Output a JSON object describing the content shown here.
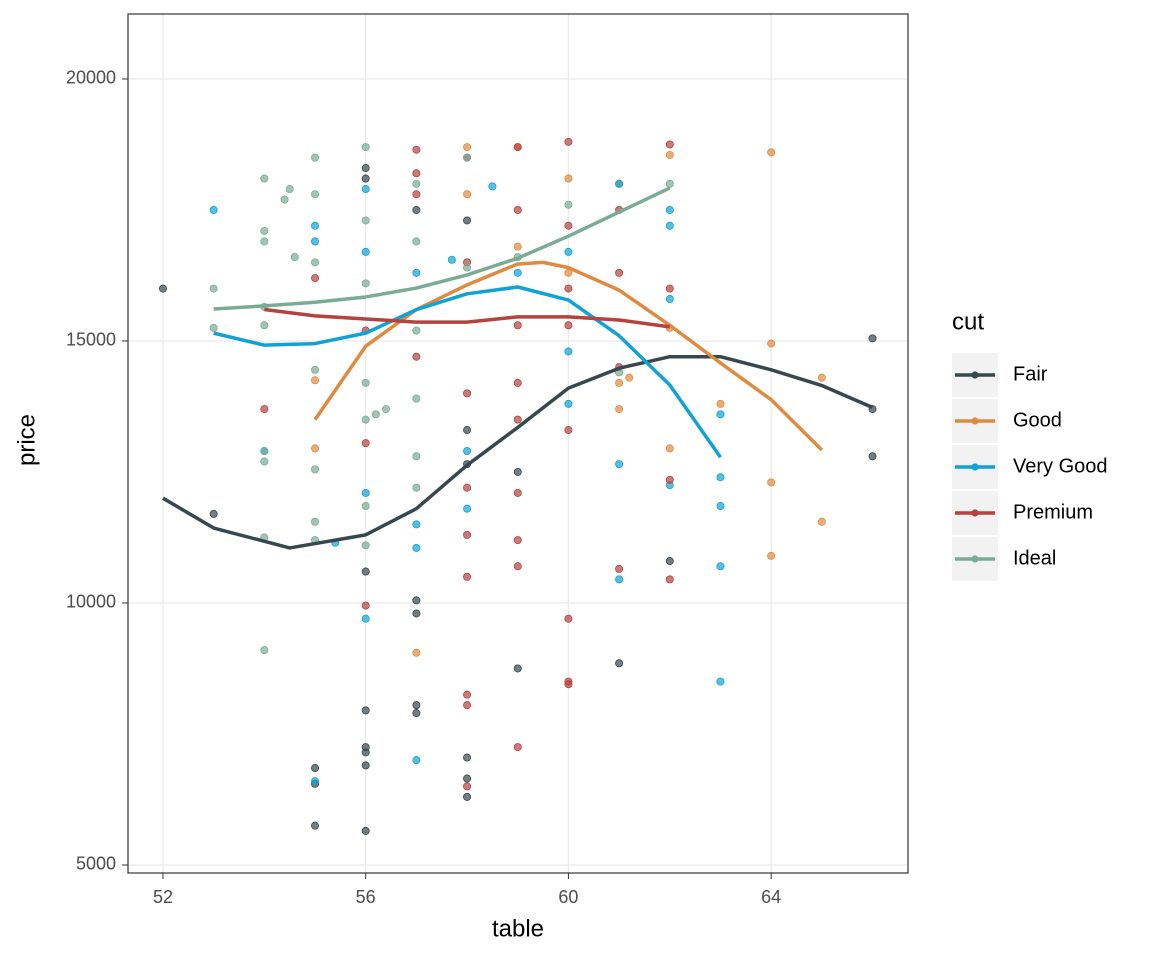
{
  "chart_data": {
    "type": "scatter",
    "x_label": "table",
    "y_label": "price",
    "legend_title": "cut",
    "legend": "right",
    "grid": true,
    "xlim": [
      51.31,
      66.7
    ],
    "ylim": [
      4847,
      21240
    ],
    "xticks": [
      52,
      56,
      60,
      64
    ],
    "yticks": [
      5000,
      10000,
      15000,
      20000
    ],
    "series": [
      {
        "name": "Fair",
        "color": "#37474f",
        "x": [
          52,
          53,
          55,
          55,
          55,
          56,
          56,
          56,
          56,
          56,
          56,
          56,
          56,
          57,
          57,
          57,
          57,
          58,
          58,
          58,
          58,
          58,
          59,
          59,
          61,
          62,
          66,
          66,
          66,
          57,
          58
        ],
        "values": [
          16000,
          11700,
          6850,
          6550,
          5750,
          18300,
          18100,
          10600,
          7950,
          7250,
          7150,
          6900,
          5650,
          10050,
          9800,
          8050,
          7900,
          13300,
          12650,
          7050,
          6650,
          6300,
          12500,
          8750,
          8850,
          10800,
          15050,
          13700,
          12800,
          17500,
          17300
        ],
        "fit_x": [
          52,
          53,
          54.5,
          56,
          57,
          58,
          59,
          60,
          61,
          62,
          63,
          64,
          65,
          66
        ],
        "fit_values": [
          12000,
          11430,
          11050,
          11300,
          11800,
          12630,
          13350,
          14100,
          14480,
          14700,
          14700,
          14450,
          14150,
          13730
        ]
      },
      {
        "name": "Good",
        "color": "#df8b3f",
        "x": [
          55,
          55,
          57,
          58,
          58,
          59,
          60,
          61,
          61,
          61,
          61.2,
          62,
          62,
          62,
          63,
          64,
          64,
          64,
          64,
          65,
          65,
          59,
          60
        ],
        "values": [
          14250,
          12950,
          9050,
          18700,
          17800,
          18700,
          16300,
          18000,
          14200,
          13700,
          14300,
          18550,
          15250,
          12950,
          13800,
          18600,
          14950,
          12300,
          10900,
          14300,
          11550,
          16800,
          18100
        ],
        "fit_x": [
          55,
          56,
          57,
          58,
          59,
          59.5,
          60,
          61,
          62,
          63,
          64,
          65
        ],
        "fit_values": [
          13500,
          14900,
          15600,
          16070,
          16470,
          16500,
          16400,
          15970,
          15300,
          14580,
          13880,
          12920
        ]
      },
      {
        "name": "Very Good",
        "color": "#10a2d4",
        "x": [
          53,
          54,
          55,
          55,
          55,
          55.4,
          56,
          56,
          56,
          56,
          57,
          57,
          57,
          57,
          57.7,
          58,
          58,
          58.5,
          60,
          60,
          61,
          61,
          61,
          62,
          62,
          62,
          62,
          63,
          63,
          63,
          63,
          63,
          59,
          60
        ],
        "values": [
          17500,
          12900,
          6600,
          17200,
          16900,
          11150,
          12100,
          9700,
          16700,
          17900,
          11500,
          11050,
          7000,
          16300,
          16550,
          11800,
          12900,
          17950,
          14800,
          13800,
          18000,
          12650,
          10450,
          17500,
          17200,
          15800,
          12250,
          13600,
          12400,
          11850,
          10700,
          8500,
          16300,
          16700
        ],
        "fit_x": [
          53,
          54,
          55,
          56,
          57,
          58,
          59,
          60,
          61,
          62,
          63
        ],
        "fit_values": [
          15150,
          14920,
          14950,
          15150,
          15600,
          15900,
          16030,
          15780,
          15100,
          14160,
          12780
        ]
      },
      {
        "name": "Premium",
        "color": "#b4423f",
        "x": [
          54,
          55,
          56,
          56,
          56,
          57,
          57,
          57,
          57,
          58,
          58,
          58,
          58,
          58,
          58,
          58,
          58,
          59,
          59,
          59,
          59,
          59,
          59,
          59,
          59,
          60,
          60,
          60,
          60,
          60,
          60,
          60,
          61,
          61,
          61,
          61,
          62,
          62,
          62,
          62,
          58,
          59,
          60
        ],
        "values": [
          13700,
          16200,
          13050,
          9950,
          15200,
          18650,
          18200,
          17800,
          14700,
          18500,
          16500,
          14000,
          11300,
          10500,
          8250,
          8050,
          6500,
          18700,
          17500,
          15300,
          13500,
          12100,
          11200,
          10700,
          7250,
          18800,
          17200,
          16000,
          13300,
          9700,
          8500,
          8450,
          17500,
          16300,
          14500,
          10650,
          18750,
          16000,
          12350,
          10450,
          12200,
          14200,
          15300
        ],
        "fit_x": [
          54,
          55,
          56,
          57,
          58,
          59,
          60,
          61,
          62
        ],
        "fit_values": [
          15600,
          15480,
          15420,
          15360,
          15360,
          15460,
          15460,
          15400,
          15270
        ]
      },
      {
        "name": "Ideal",
        "color": "#7aab95",
        "x": [
          53,
          53,
          54,
          54,
          54,
          54,
          54,
          54,
          54,
          54,
          54,
          54.4,
          54.6,
          54.5,
          55,
          55,
          55,
          55,
          55,
          55,
          55,
          56,
          56,
          56,
          56,
          56,
          56,
          56,
          56.4,
          57,
          57,
          57,
          57,
          57,
          57,
          58,
          58,
          59,
          60,
          61,
          62,
          56.2
        ],
        "values": [
          16000,
          15250,
          18100,
          17100,
          16900,
          15650,
          15300,
          12900,
          12700,
          11250,
          9100,
          17700,
          16600,
          17900,
          18500,
          17800,
          16500,
          14450,
          12550,
          11550,
          11200,
          18700,
          17300,
          16100,
          14200,
          13500,
          11850,
          11100,
          13700,
          18000,
          16900,
          15200,
          13900,
          12800,
          12200,
          18500,
          16400,
          16600,
          17600,
          14400,
          18000,
          13600
        ],
        "fit_x": [
          53,
          54,
          55,
          56,
          57,
          58,
          59,
          60,
          61,
          62
        ],
        "fit_values": [
          15610,
          15670,
          15740,
          15840,
          16010,
          16260,
          16580,
          17000,
          17460,
          17920
        ]
      }
    ]
  }
}
